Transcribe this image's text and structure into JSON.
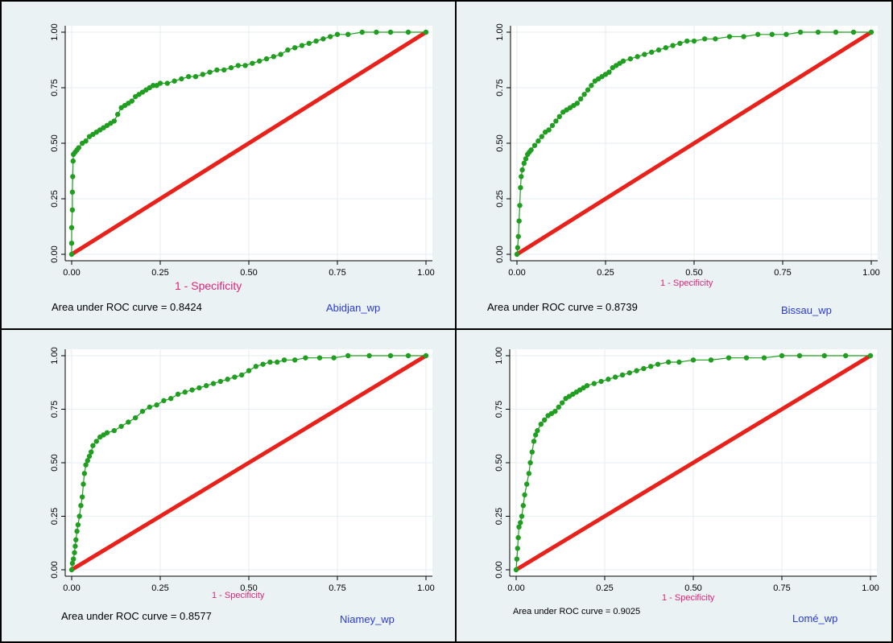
{
  "chart_data": [
    {
      "type": "line",
      "xlabel": "1 - Specificity",
      "annotation": "Area under ROC curve = 0.8424",
      "label": "Abidjan_wp",
      "xlim": [
        0,
        1
      ],
      "ylim": [
        0,
        1
      ],
      "x_ticks": [
        "0.00",
        "0.25",
        "0.50",
        "0.75",
        "1.00"
      ],
      "y_ticks": [
        "0.00",
        "0.25",
        "0.50",
        "0.75",
        "1.00"
      ],
      "grid": true,
      "colors": {
        "roc": "#1f9e1f",
        "reference": "#e8211b",
        "xlabel": "#e0247a",
        "label": "#2a3ad6"
      },
      "series": [
        {
          "values": [
            [
              0,
              0
            ],
            [
              0,
              0.05
            ],
            [
              0,
              0.12
            ],
            [
              0.002,
              0.2
            ],
            [
              0.002,
              0.28
            ],
            [
              0.003,
              0.35
            ],
            [
              0.004,
              0.42
            ],
            [
              0.005,
              0.45
            ],
            [
              0.01,
              0.46
            ],
            [
              0.015,
              0.47
            ],
            [
              0.02,
              0.48
            ],
            [
              0.03,
              0.5
            ],
            [
              0.04,
              0.51
            ],
            [
              0.05,
              0.53
            ],
            [
              0.06,
              0.54
            ],
            [
              0.07,
              0.55
            ],
            [
              0.08,
              0.56
            ],
            [
              0.09,
              0.57
            ],
            [
              0.1,
              0.58
            ],
            [
              0.11,
              0.59
            ],
            [
              0.12,
              0.6
            ],
            [
              0.13,
              0.63
            ],
            [
              0.14,
              0.66
            ],
            [
              0.15,
              0.67
            ],
            [
              0.16,
              0.68
            ],
            [
              0.17,
              0.69
            ],
            [
              0.18,
              0.71
            ],
            [
              0.19,
              0.72
            ],
            [
              0.2,
              0.73
            ],
            [
              0.21,
              0.74
            ],
            [
              0.22,
              0.75
            ],
            [
              0.23,
              0.76
            ],
            [
              0.24,
              0.76
            ],
            [
              0.25,
              0.77
            ],
            [
              0.27,
              0.77
            ],
            [
              0.29,
              0.78
            ],
            [
              0.31,
              0.79
            ],
            [
              0.33,
              0.8
            ],
            [
              0.35,
              0.8
            ],
            [
              0.37,
              0.81
            ],
            [
              0.39,
              0.82
            ],
            [
              0.41,
              0.83
            ],
            [
              0.43,
              0.83
            ],
            [
              0.45,
              0.84
            ],
            [
              0.47,
              0.85
            ],
            [
              0.49,
              0.85
            ],
            [
              0.51,
              0.86
            ],
            [
              0.53,
              0.87
            ],
            [
              0.55,
              0.88
            ],
            [
              0.57,
              0.89
            ],
            [
              0.59,
              0.9
            ],
            [
              0.61,
              0.92
            ],
            [
              0.63,
              0.93
            ],
            [
              0.65,
              0.94
            ],
            [
              0.67,
              0.95
            ],
            [
              0.69,
              0.96
            ],
            [
              0.71,
              0.97
            ],
            [
              0.73,
              0.98
            ],
            [
              0.75,
              0.99
            ],
            [
              0.78,
              0.99
            ],
            [
              0.82,
              1.0
            ],
            [
              0.86,
              1.0
            ],
            [
              0.9,
              1.0
            ],
            [
              0.95,
              1.0
            ],
            [
              1.0,
              1.0
            ]
          ]
        },
        {
          "values": [
            [
              0,
              0
            ],
            [
              1,
              1
            ]
          ]
        }
      ]
    },
    {
      "type": "line",
      "xlabel": "1 - Specificity",
      "annotation": "Area under ROC curve = 0.8739",
      "label": "Bissau_wp",
      "xlim": [
        0,
        1
      ],
      "ylim": [
        0,
        1
      ],
      "x_ticks": [
        "0.00",
        "0.25",
        "0.50",
        "0.75",
        "1.00"
      ],
      "y_ticks": [
        "0.00",
        "0.25",
        "0.50",
        "0.75",
        "1.00"
      ],
      "grid": true,
      "colors": {
        "roc": "#1f9e1f",
        "reference": "#e8211b",
        "xlabel": "#e0247a",
        "label": "#2a3ad6"
      },
      "series": [
        {
          "values": [
            [
              0,
              0
            ],
            [
              0.002,
              0.03
            ],
            [
              0.004,
              0.08
            ],
            [
              0.006,
              0.15
            ],
            [
              0.008,
              0.22
            ],
            [
              0.01,
              0.3
            ],
            [
              0.012,
              0.35
            ],
            [
              0.015,
              0.38
            ],
            [
              0.02,
              0.41
            ],
            [
              0.025,
              0.43
            ],
            [
              0.03,
              0.45
            ],
            [
              0.035,
              0.46
            ],
            [
              0.04,
              0.47
            ],
            [
              0.05,
              0.49
            ],
            [
              0.06,
              0.51
            ],
            [
              0.07,
              0.53
            ],
            [
              0.08,
              0.55
            ],
            [
              0.09,
              0.56
            ],
            [
              0.1,
              0.58
            ],
            [
              0.11,
              0.6
            ],
            [
              0.12,
              0.62
            ],
            [
              0.13,
              0.64
            ],
            [
              0.14,
              0.65
            ],
            [
              0.15,
              0.66
            ],
            [
              0.16,
              0.67
            ],
            [
              0.17,
              0.68
            ],
            [
              0.18,
              0.7
            ],
            [
              0.19,
              0.72
            ],
            [
              0.2,
              0.74
            ],
            [
              0.21,
              0.76
            ],
            [
              0.22,
              0.78
            ],
            [
              0.23,
              0.79
            ],
            [
              0.24,
              0.8
            ],
            [
              0.25,
              0.81
            ],
            [
              0.26,
              0.82
            ],
            [
              0.27,
              0.84
            ],
            [
              0.28,
              0.85
            ],
            [
              0.29,
              0.86
            ],
            [
              0.3,
              0.87
            ],
            [
              0.32,
              0.88
            ],
            [
              0.34,
              0.89
            ],
            [
              0.36,
              0.9
            ],
            [
              0.38,
              0.91
            ],
            [
              0.4,
              0.92
            ],
            [
              0.42,
              0.93
            ],
            [
              0.44,
              0.94
            ],
            [
              0.46,
              0.95
            ],
            [
              0.48,
              0.96
            ],
            [
              0.5,
              0.96
            ],
            [
              0.53,
              0.97
            ],
            [
              0.56,
              0.97
            ],
            [
              0.6,
              0.98
            ],
            [
              0.64,
              0.98
            ],
            [
              0.68,
              0.99
            ],
            [
              0.72,
              0.99
            ],
            [
              0.76,
              0.99
            ],
            [
              0.8,
              1.0
            ],
            [
              0.85,
              1.0
            ],
            [
              0.9,
              1.0
            ],
            [
              0.95,
              1.0
            ],
            [
              1.0,
              1.0
            ]
          ]
        },
        {
          "values": [
            [
              0,
              0
            ],
            [
              1,
              1
            ]
          ]
        }
      ]
    },
    {
      "type": "line",
      "xlabel": "1 - Specificity",
      "annotation": "Area under ROC curve = 0.8577",
      "label": "Niamey_wp",
      "xlim": [
        0,
        1
      ],
      "ylim": [
        0,
        1
      ],
      "x_ticks": [
        "0.00",
        "0.25",
        "0.50",
        "0.75",
        "1.00"
      ],
      "y_ticks": [
        "0.00",
        "0.25",
        "0.50",
        "0.75",
        "1.00"
      ],
      "grid": true,
      "colors": {
        "roc": "#1f9e1f",
        "reference": "#e8211b",
        "xlabel": "#e0247a",
        "label": "#2a3ad6"
      },
      "series": [
        {
          "values": [
            [
              0,
              0
            ],
            [
              0.002,
              0.03
            ],
            [
              0.005,
              0.05
            ],
            [
              0.008,
              0.08
            ],
            [
              0.01,
              0.11
            ],
            [
              0.012,
              0.14
            ],
            [
              0.015,
              0.18
            ],
            [
              0.018,
              0.21
            ],
            [
              0.022,
              0.25
            ],
            [
              0.026,
              0.3
            ],
            [
              0.03,
              0.34
            ],
            [
              0.033,
              0.4
            ],
            [
              0.036,
              0.45
            ],
            [
              0.04,
              0.49
            ],
            [
              0.045,
              0.51
            ],
            [
              0.05,
              0.53
            ],
            [
              0.055,
              0.55
            ],
            [
              0.06,
              0.58
            ],
            [
              0.07,
              0.6
            ],
            [
              0.08,
              0.62
            ],
            [
              0.09,
              0.63
            ],
            [
              0.1,
              0.64
            ],
            [
              0.12,
              0.65
            ],
            [
              0.14,
              0.67
            ],
            [
              0.16,
              0.69
            ],
            [
              0.18,
              0.71
            ],
            [
              0.2,
              0.74
            ],
            [
              0.22,
              0.76
            ],
            [
              0.24,
              0.77
            ],
            [
              0.26,
              0.79
            ],
            [
              0.28,
              0.8
            ],
            [
              0.3,
              0.82
            ],
            [
              0.32,
              0.83
            ],
            [
              0.34,
              0.84
            ],
            [
              0.36,
              0.85
            ],
            [
              0.38,
              0.86
            ],
            [
              0.4,
              0.87
            ],
            [
              0.42,
              0.88
            ],
            [
              0.44,
              0.89
            ],
            [
              0.46,
              0.9
            ],
            [
              0.48,
              0.91
            ],
            [
              0.5,
              0.93
            ],
            [
              0.52,
              0.95
            ],
            [
              0.54,
              0.96
            ],
            [
              0.56,
              0.97
            ],
            [
              0.58,
              0.97
            ],
            [
              0.6,
              0.98
            ],
            [
              0.63,
              0.98
            ],
            [
              0.66,
              0.99
            ],
            [
              0.7,
              0.99
            ],
            [
              0.74,
              0.99
            ],
            [
              0.78,
              1.0
            ],
            [
              0.84,
              1.0
            ],
            [
              0.9,
              1.0
            ],
            [
              0.95,
              1.0
            ],
            [
              1.0,
              1.0
            ]
          ]
        },
        {
          "values": [
            [
              0,
              0
            ],
            [
              1,
              1
            ]
          ]
        }
      ]
    },
    {
      "type": "line",
      "xlabel": "1 - Specificity",
      "annotation": "Area under ROC curve = 0.9025",
      "label": "Lomé_wp",
      "xlim": [
        0,
        1
      ],
      "ylim": [
        0,
        1
      ],
      "x_ticks": [
        "0.00",
        "0.25",
        "0.50",
        "0.75",
        "1.00"
      ],
      "y_ticks": [
        "0.00",
        "0.25",
        "0.50",
        "0.75",
        "1.00"
      ],
      "grid": true,
      "colors": {
        "roc": "#1f9e1f",
        "reference": "#e8211b",
        "xlabel": "#e0247a",
        "label": "#2a3ad6"
      },
      "series": [
        {
          "values": [
            [
              0,
              0
            ],
            [
              0.002,
              0.05
            ],
            [
              0.004,
              0.1
            ],
            [
              0.006,
              0.15
            ],
            [
              0.008,
              0.2
            ],
            [
              0.012,
              0.22
            ],
            [
              0.016,
              0.25
            ],
            [
              0.02,
              0.3
            ],
            [
              0.024,
              0.35
            ],
            [
              0.03,
              0.4
            ],
            [
              0.036,
              0.45
            ],
            [
              0.04,
              0.5
            ],
            [
              0.045,
              0.55
            ],
            [
              0.05,
              0.6
            ],
            [
              0.055,
              0.63
            ],
            [
              0.06,
              0.65
            ],
            [
              0.07,
              0.68
            ],
            [
              0.08,
              0.7
            ],
            [
              0.09,
              0.72
            ],
            [
              0.1,
              0.73
            ],
            [
              0.11,
              0.74
            ],
            [
              0.12,
              0.76
            ],
            [
              0.13,
              0.78
            ],
            [
              0.14,
              0.8
            ],
            [
              0.15,
              0.81
            ],
            [
              0.16,
              0.82
            ],
            [
              0.17,
              0.83
            ],
            [
              0.18,
              0.84
            ],
            [
              0.19,
              0.85
            ],
            [
              0.2,
              0.86
            ],
            [
              0.22,
              0.87
            ],
            [
              0.24,
              0.88
            ],
            [
              0.26,
              0.89
            ],
            [
              0.28,
              0.9
            ],
            [
              0.3,
              0.91
            ],
            [
              0.32,
              0.92
            ],
            [
              0.34,
              0.93
            ],
            [
              0.36,
              0.94
            ],
            [
              0.38,
              0.95
            ],
            [
              0.4,
              0.96
            ],
            [
              0.43,
              0.97
            ],
            [
              0.46,
              0.97
            ],
            [
              0.5,
              0.98
            ],
            [
              0.55,
              0.98
            ],
            [
              0.6,
              0.99
            ],
            [
              0.65,
              0.99
            ],
            [
              0.7,
              0.99
            ],
            [
              0.75,
              1.0
            ],
            [
              0.8,
              1.0
            ],
            [
              0.87,
              1.0
            ],
            [
              0.93,
              1.0
            ],
            [
              1.0,
              1.0
            ]
          ]
        },
        {
          "values": [
            [
              0,
              0
            ],
            [
              1,
              1
            ]
          ]
        }
      ]
    }
  ]
}
